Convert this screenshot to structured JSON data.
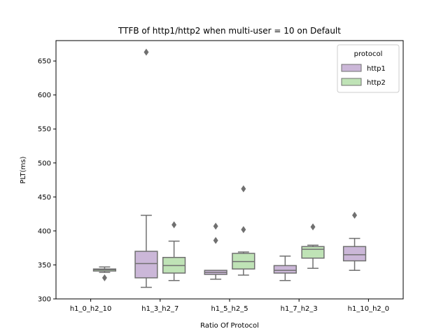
{
  "chart_data": {
    "type": "box",
    "title": "TTFB of http1/http2 when multi-user = 10 on Default",
    "xlabel": "Ratio Of Protocol",
    "ylabel": "PLT(ms)",
    "ylim": [
      300,
      680
    ],
    "yticks": [
      300,
      350,
      400,
      450,
      500,
      550,
      600,
      650
    ],
    "categories": [
      "h1_0_h2_10",
      "h1_3_h2_7",
      "h1_5_h2_5",
      "h1_7_h2_3",
      "h1_10_h2_0"
    ],
    "grid": false,
    "legend": {
      "title": "protocol",
      "placement": "top-right"
    },
    "series": [
      {
        "name": "http1",
        "color": "#cbb7d8",
        "boxes": [
          null,
          {
            "whislo": 317,
            "q1": 331,
            "med": 352,
            "q3": 370,
            "whishi": 423,
            "fliers": [
              663
            ]
          },
          {
            "whislo": 329,
            "q1": 336,
            "med": 339,
            "q3": 342,
            "whishi": 342,
            "fliers": [
              386,
              407
            ]
          },
          {
            "whislo": 327,
            "q1": 338,
            "med": 342,
            "q3": 349,
            "whishi": 363,
            "fliers": []
          },
          {
            "whislo": 342,
            "q1": 356,
            "med": 365,
            "q3": 377,
            "whishi": 389,
            "fliers": [
              423
            ]
          }
        ]
      },
      {
        "name": "http2",
        "color": "#bfe3b6",
        "boxes": [
          {
            "whislo": 339,
            "q1": 341,
            "med": 343,
            "q3": 344,
            "whishi": 347,
            "fliers": [
              331
            ]
          },
          {
            "whislo": 327,
            "q1": 338,
            "med": 349,
            "q3": 361,
            "whishi": 385,
            "fliers": [
              409
            ]
          },
          {
            "whislo": 335,
            "q1": 344,
            "med": 355,
            "q3": 367,
            "whishi": 369,
            "fliers": [
              402,
              462
            ]
          },
          {
            "whislo": 345,
            "q1": 360,
            "med": 373,
            "q3": 377,
            "whishi": 379,
            "fliers": [
              406
            ]
          },
          null
        ]
      }
    ]
  }
}
